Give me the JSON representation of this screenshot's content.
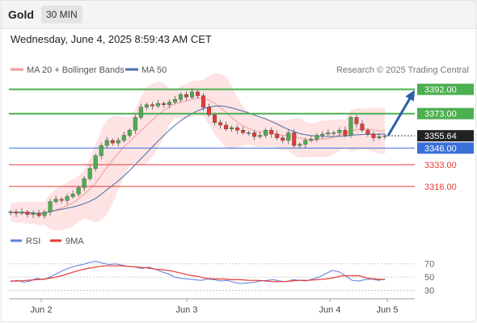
{
  "header": {
    "instrument": "Gold",
    "timeframe": "30 MIN",
    "datetime": "Wednesday, June 4, 2025 8:59:43 AM CET"
  },
  "legend": {
    "ma20_label": "MA 20 + Bollinger Bands",
    "ma50_label": "MA 50",
    "source": "Research © 2025 Trading Central",
    "rsi_label": "RSI",
    "rsi_ma_label": "9MA"
  },
  "colors": {
    "candle_up": "#4caf50",
    "candle_down": "#e53935",
    "ma20": "#ef9a9a",
    "bollinger_fill": "#fde3e3",
    "ma50": "#4a6fa5",
    "resistance": "#4caf50",
    "support": "#e53935",
    "pivot": "#3b6fd8",
    "last_price_tag": "#222222",
    "arrow": "#2e5eaa",
    "rsi": "#5b7fd6",
    "rsi_ma": "#e53935"
  },
  "chart_data": [
    {
      "type": "candlestick",
      "x_ticks": [
        "Jun 2",
        "Jun 3",
        "Jun 4",
        "Jun 5"
      ],
      "ylim": [
        3283,
        3400
      ],
      "last_price": 3355.64,
      "levels": [
        {
          "value": 3392.0,
          "label": "3392.00",
          "kind": "resistance"
        },
        {
          "value": 3373.0,
          "label": "3373.00",
          "kind": "resistance"
        },
        {
          "value": 3346.0,
          "label": "3346.00",
          "kind": "pivot"
        },
        {
          "value": 3333.0,
          "label": "3333.00",
          "kind": "support"
        },
        {
          "value": 3316.0,
          "label": "3316.00",
          "kind": "support"
        }
      ],
      "close_series": [
        3296,
        3295,
        3296,
        3294,
        3295,
        3293,
        3296,
        3304,
        3306,
        3305,
        3308,
        3310,
        3315,
        3322,
        3330,
        3340,
        3348,
        3352,
        3350,
        3352,
        3356,
        3360,
        3370,
        3378,
        3380,
        3379,
        3381,
        3380,
        3382,
        3384,
        3388,
        3386,
        3390,
        3387,
        3378,
        3372,
        3366,
        3364,
        3361,
        3362,
        3360,
        3358,
        3358,
        3355,
        3356,
        3360,
        3357,
        3354,
        3352,
        3358,
        3348,
        3349,
        3352,
        3353,
        3356,
        3357,
        3358,
        3358,
        3360,
        3356,
        3370,
        3365,
        3360,
        3357,
        3354,
        3355,
        3355.64
      ],
      "projection": {
        "from": 3355.64,
        "to": 3392.0
      },
      "series": [
        {
          "name": "MA 20 + Bollinger Bands"
        },
        {
          "name": "MA 50"
        }
      ]
    },
    {
      "type": "line",
      "ylim": [
        22,
        88
      ],
      "y_ticks": [
        30,
        50,
        70
      ],
      "series": [
        {
          "name": "RSI",
          "values": [
            43,
            45,
            42,
            44,
            48,
            46,
            50,
            55,
            60,
            64,
            67,
            69,
            72,
            74,
            71,
            69,
            70,
            68,
            66,
            65,
            63,
            65,
            62,
            58,
            55,
            50,
            48,
            47,
            46,
            45,
            47,
            46,
            44,
            45,
            42,
            40,
            41,
            42,
            44,
            45,
            46,
            44,
            43,
            46,
            45,
            44,
            47,
            50,
            55,
            60,
            58,
            52,
            45,
            44,
            46,
            47,
            45,
            47
          ]
        },
        {
          "name": "9MA",
          "values": [
            44,
            44,
            45,
            46,
            47,
            49,
            52,
            56,
            60,
            63,
            65,
            67,
            67,
            67,
            66,
            65,
            64,
            62,
            61,
            59,
            56,
            53,
            51,
            48,
            47,
            47,
            46,
            46,
            45,
            45,
            44,
            43,
            43,
            44,
            45,
            45,
            46,
            47,
            49,
            52,
            52,
            52,
            48,
            47,
            46
          ]
        }
      ]
    }
  ]
}
